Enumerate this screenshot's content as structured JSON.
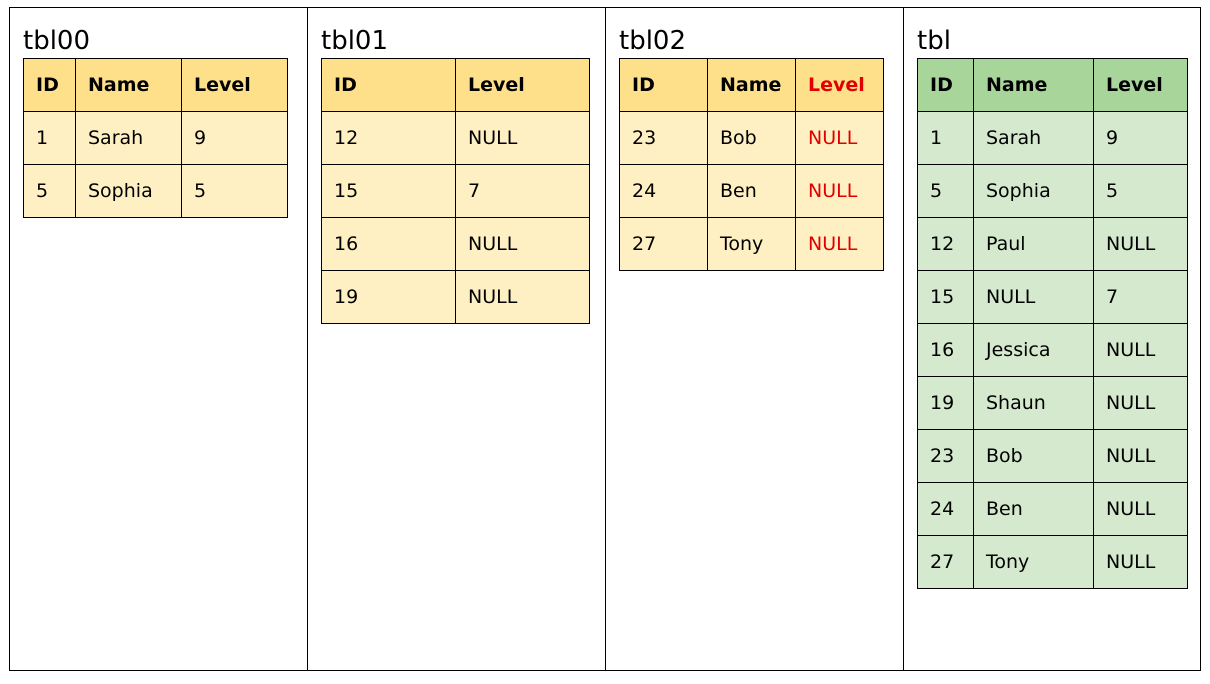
{
  "panels": [
    {
      "title": "tbl00",
      "headers": [
        "ID",
        "Name",
        "Level"
      ],
      "rows": [
        [
          "1",
          "Sarah",
          "9"
        ],
        [
          "5",
          "Sophia",
          "5"
        ]
      ]
    },
    {
      "title": "tbl01",
      "headers": [
        "ID",
        "Level"
      ],
      "rows": [
        [
          "12",
          "NULL"
        ],
        [
          "15",
          "7"
        ],
        [
          "16",
          "NULL"
        ],
        [
          "19",
          "NULL"
        ]
      ]
    },
    {
      "title": "tbl02",
      "headers": [
        "ID",
        "Name",
        "Level"
      ],
      "rows": [
        [
          "23",
          "Bob",
          "NULL"
        ],
        [
          "24",
          "Ben",
          "NULL"
        ],
        [
          "27",
          "Tony",
          "NULL"
        ]
      ]
    },
    {
      "title": "tbl",
      "headers": [
        "ID",
        "Name",
        "Level"
      ],
      "rows": [
        [
          "1",
          "Sarah",
          "9"
        ],
        [
          "5",
          "Sophia",
          "5"
        ],
        [
          "12",
          "Paul",
          "NULL"
        ],
        [
          "15",
          "NULL",
          "7"
        ],
        [
          "16",
          "Jessica",
          "NULL"
        ],
        [
          "19",
          "Shaun",
          "NULL"
        ],
        [
          "23",
          "Bob",
          "NULL"
        ],
        [
          "24",
          "Ben",
          "NULL"
        ],
        [
          "27",
          "Tony",
          "NULL"
        ]
      ]
    }
  ],
  "colors": {
    "source_header": "#ffe08a",
    "source_cell": "#fff0c4",
    "result_header": "#a8d59a",
    "result_cell": "#d4e9cd",
    "highlight_text": "#e00000"
  }
}
